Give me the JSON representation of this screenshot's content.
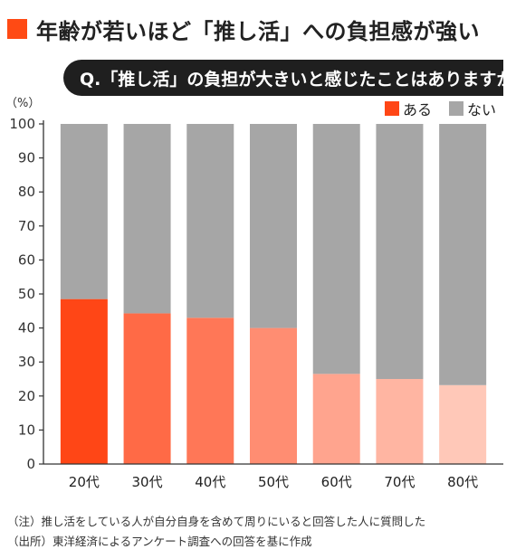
{
  "title": "年齢が若いほど「推し活」への負担感が強い",
  "question": "Q.「推し活」の負担が大きいと感じたことはありますか",
  "chart_data": {
    "type": "bar",
    "stacked": true,
    "unit_label": "（%）",
    "categories": [
      "20代",
      "30代",
      "40代",
      "50代",
      "60代",
      "70代",
      "80代"
    ],
    "series": [
      {
        "name": "ある",
        "values": [
          48.5,
          44.3,
          43.0,
          40.0,
          26.5,
          25.0,
          23.2
        ],
        "colors": [
          "#ff4616",
          "#ff6a46",
          "#ff7757",
          "#ff8d72",
          "#ffa48e",
          "#ffb5a2",
          "#ffc8b8"
        ],
        "legend_color": "#ff4616"
      },
      {
        "name": "ない",
        "values": [
          51.5,
          55.7,
          57.0,
          60.0,
          73.5,
          75.0,
          76.8
        ],
        "color": "#a6a6a6"
      }
    ],
    "ylim": [
      0,
      100
    ],
    "yticks": [
      "0",
      "10",
      "20",
      "30",
      "40",
      "50",
      "60",
      "70",
      "80",
      "90",
      "100"
    ],
    "grid": false,
    "legend_position": "top-right"
  },
  "notes": [
    "（注）推し活をしている人が自分自身を含めて周りにいると回答した人に質問した",
    "（出所）東洋経済によるアンケート調査への回答を基に作成"
  ]
}
